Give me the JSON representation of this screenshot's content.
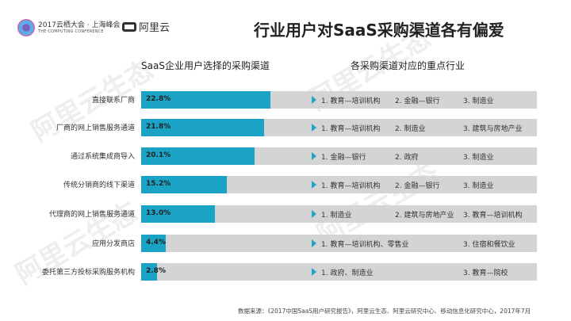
{
  "header": {
    "conference_line1": "2017云栖大会 · 上海峰会",
    "conference_line2": "THE COMPUTING CONFERENCE",
    "brand": "阿里云",
    "title": "行业用户对SaaS采购渠道各有偏爱"
  },
  "watermark": "阿里云生态",
  "colors": {
    "bar": "#1ba3c6",
    "track": "#d4d4d4"
  },
  "chart_data": {
    "type": "bar",
    "orientation": "horizontal",
    "title": "SaaS企业用户选择的采购渠道",
    "categories": [
      "直接联系厂商",
      "厂商的网上销售服务通道",
      "通过系统集成商导入",
      "传统分销商的线下渠道",
      "代理商的网上销售服务通道",
      "应用分发商店",
      "委托第三方投标采购服务机构"
    ],
    "values": [
      22.8,
      21.8,
      20.1,
      15.2,
      13.0,
      4.4,
      2.8
    ],
    "value_labels": [
      "22.8%",
      "21.8%",
      "20.1%",
      "15.2%",
      "13.0%",
      "4.4%",
      "2.8%"
    ],
    "unit": "%",
    "xlim": [
      0,
      70
    ]
  },
  "industries": {
    "title": "各采购渠道对应的重点行业",
    "rows": [
      [
        "1. 教育—培训机构",
        "2. 金融—银行",
        "3. 制造业"
      ],
      [
        "1. 教育—培训机构",
        "2. 制造业",
        "3. 建筑与房地产业"
      ],
      [
        "1. 金融—银行",
        "2. 政府",
        "3. 制造业"
      ],
      [
        "1. 教育—培训机构",
        "2. 金融—银行",
        "3. 制造业"
      ],
      [
        "1. 制造业",
        "2. 建筑与房地产业",
        "3. 教育—培训机构"
      ],
      [
        "1. 教育—培训机构、零售业",
        "",
        "3. 住宿和餐饮业"
      ],
      [
        "1. 政府、制造业",
        "",
        "3. 教育—院校"
      ]
    ]
  },
  "source": "数据来源：《2017中国SaaS用户研究报告》，阿里云生态、阿里云研究中心、移动信息化研究中心，2017年7月"
}
